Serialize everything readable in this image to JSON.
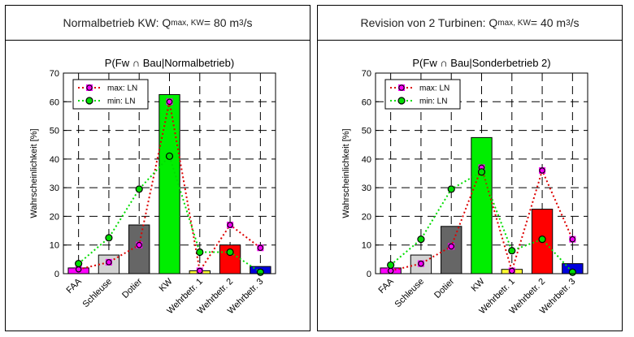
{
  "chart_data": [
    {
      "type": "bar",
      "header": {
        "prefix": "Normalbetrieb KW: Q",
        "sub": "max, KW",
        "mid": " = 80 m",
        "sup": "3",
        "suffix": "/s"
      },
      "title": "P(Fw ∩ Bau|Normalbetrieb)",
      "ylabel": "Wahrscheinlichkeit [%]",
      "ylim": [
        0,
        70
      ],
      "yticks": [
        0,
        10,
        20,
        30,
        40,
        50,
        60,
        70
      ],
      "grid": true,
      "legend_position": "top-left",
      "categories": [
        "FAA",
        "Schleuse",
        "Dotier",
        "KW",
        "Wehrbetr. 1",
        "Wehrbetr. 2",
        "Wehrbetr. 3"
      ],
      "bar_colors": [
        "#ff00ff",
        "#d3d3d3",
        "#666666",
        "#00ee00",
        "#ffff33",
        "#ff0000",
        "#0000dd"
      ],
      "bars": [
        2,
        6.5,
        17,
        62.5,
        1,
        10,
        2.5
      ],
      "series": [
        {
          "name": "max: LN",
          "color": "#dd0000",
          "marker_fill": "#ff00ff",
          "values": [
            1.5,
            4,
            10,
            60,
            1,
            17,
            9
          ]
        },
        {
          "name": "min: LN",
          "color": "#00dd00",
          "marker_fill": "#00dd00",
          "values": [
            3.5,
            12.5,
            29.5,
            41,
            7.5,
            7.5,
            0.5
          ]
        }
      ]
    },
    {
      "type": "bar",
      "header": {
        "prefix": "Revision von 2 Turbinen: Q",
        "sub": "max, KW",
        "mid": " = 40 m",
        "sup": "3",
        "suffix": "/s"
      },
      "title": "P(Fw ∩ Bau|Sonderbetrieb 2)",
      "ylabel": "Wahrscheinlichkeit [%]",
      "ylim": [
        0,
        70
      ],
      "yticks": [
        0,
        10,
        20,
        30,
        40,
        50,
        60,
        70
      ],
      "grid": true,
      "legend_position": "top-left",
      "categories": [
        "FAA",
        "Schleuse",
        "Dotier",
        "KW",
        "Wehrbetr. 1",
        "Wehrbetr. 2",
        "Wehrbetr. 3"
      ],
      "bar_colors": [
        "#ff00ff",
        "#d3d3d3",
        "#666666",
        "#00ee00",
        "#ffff33",
        "#ff0000",
        "#0000dd"
      ],
      "bars": [
        2,
        6.5,
        16.5,
        47.5,
        1.5,
        22.5,
        3.5
      ],
      "series": [
        {
          "name": "max: LN",
          "color": "#dd0000",
          "marker_fill": "#ff00ff",
          "values": [
            1,
            3.5,
            9.5,
            37,
            1,
            36,
            12
          ]
        },
        {
          "name": "min: LN",
          "color": "#00dd00",
          "marker_fill": "#00dd00",
          "values": [
            3,
            12,
            29.5,
            35.5,
            8,
            12,
            0.5
          ]
        }
      ]
    }
  ]
}
